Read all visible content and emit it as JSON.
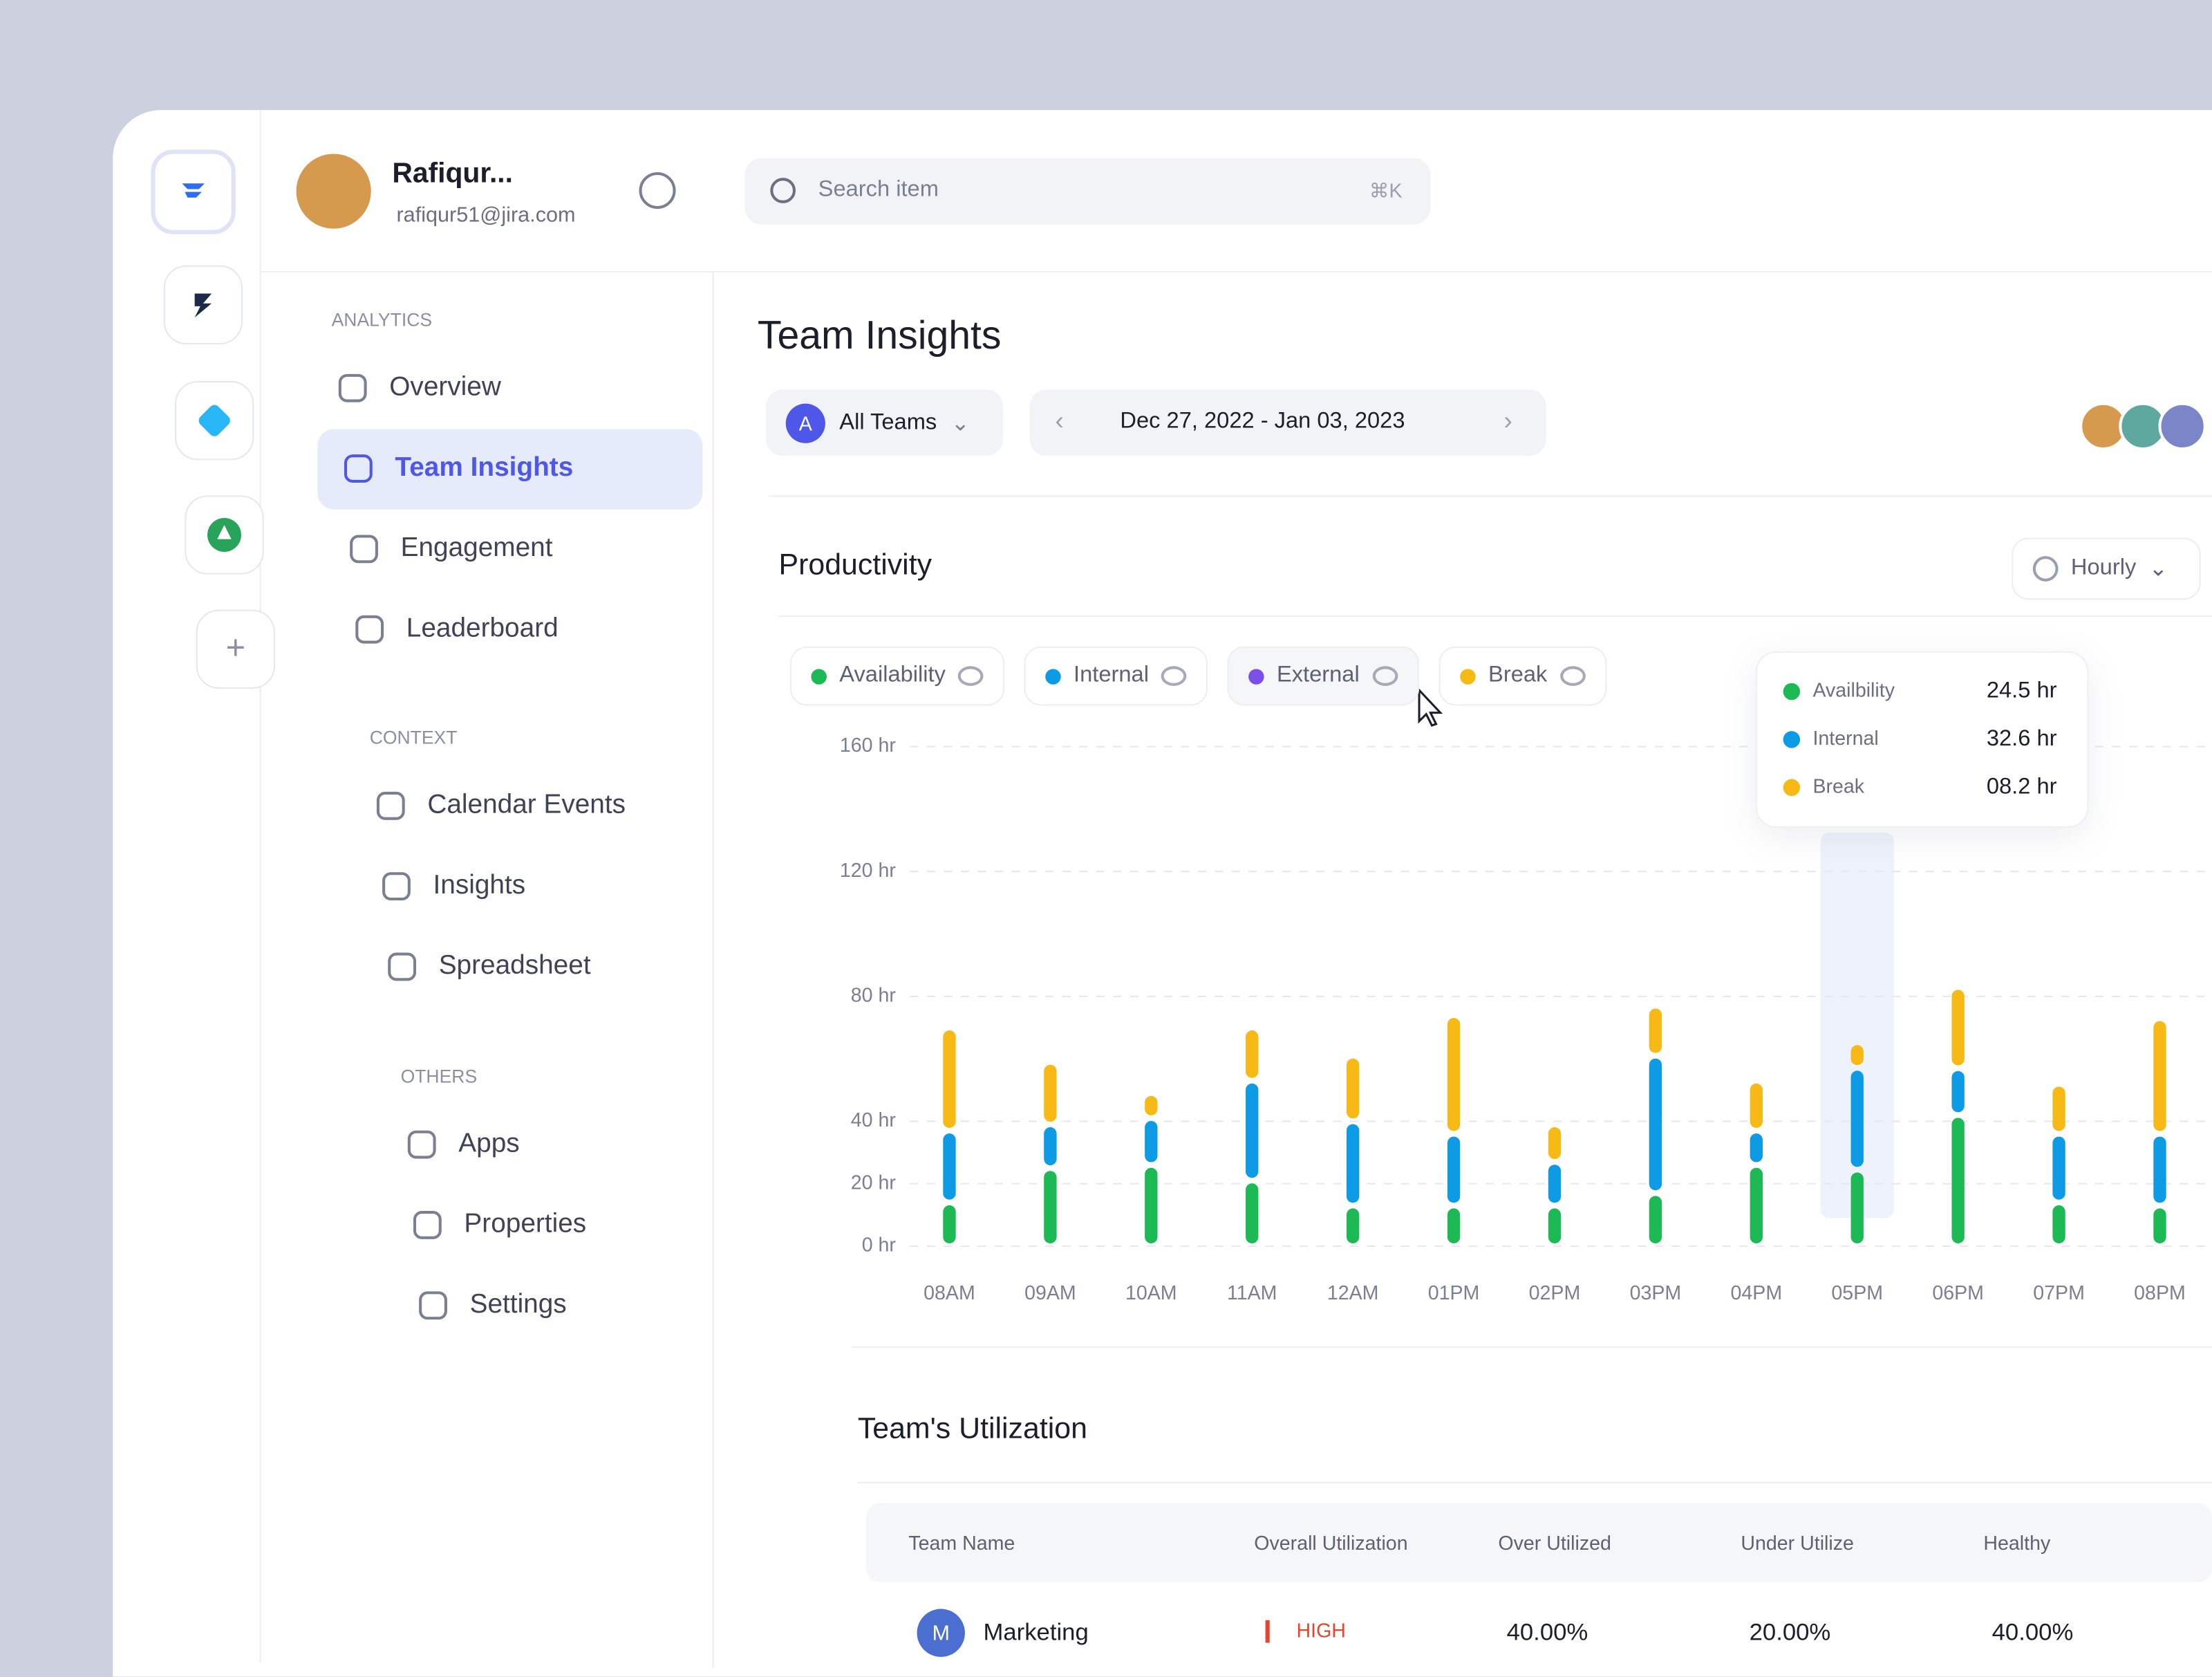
{
  "user": {
    "name": "Rafiqur...",
    "email": "rafiqur51@jira.com"
  },
  "search": {
    "placeholder": "Search item",
    "shortcut": "⌘K"
  },
  "sidebar": {
    "sections": [
      {
        "title": "ANALYTICS",
        "items": [
          "Overview",
          "Team Insights",
          "Engagement",
          "Leaderboard"
        ]
      },
      {
        "title": "CONTEXT",
        "items": [
          "Calendar Events",
          "Insights",
          "Spreadsheet"
        ]
      },
      {
        "title": "OTHERS",
        "items": [
          "Apps",
          "Properties",
          "Settings"
        ]
      }
    ]
  },
  "page": {
    "title": "Team Insights",
    "team_filter": {
      "initial": "A",
      "label": "All Teams"
    },
    "date_range": "Dec 27, 2022 - Jan 03, 2023"
  },
  "chart_data": {
    "type": "bar",
    "stacked": true,
    "title": "Productivity",
    "interval": "Hourly",
    "categories": [
      "08AM",
      "09AM",
      "10AM",
      "11AM",
      "12AM",
      "01PM",
      "02PM",
      "03PM",
      "04PM",
      "05PM",
      "06PM",
      "07PM",
      "08PM"
    ],
    "series": [
      {
        "name": "Availability",
        "color": "#1db954",
        "values": [
          14,
          25,
          26,
          21,
          13,
          13,
          13,
          17,
          26,
          24.5,
          42,
          14,
          13
        ]
      },
      {
        "name": "Internal",
        "color": "#0e9be6",
        "values": [
          23,
          14,
          15,
          32,
          27,
          23,
          14,
          44,
          11,
          32.6,
          15,
          22,
          23
        ]
      },
      {
        "name": "Break",
        "color": "#f7b916",
        "values": [
          33,
          20,
          8,
          17,
          21,
          38,
          12,
          16,
          16,
          8.2,
          26,
          16,
          37
        ]
      }
    ],
    "hidden_series": [
      {
        "name": "External",
        "color": "#7b4fe8"
      }
    ],
    "ylim": [
      0,
      160
    ],
    "yticks": [
      {
        "value": 0,
        "label": "0 hr"
      },
      {
        "value": 20,
        "label": "20 hr"
      },
      {
        "value": 40,
        "label": "40 hr"
      },
      {
        "value": 80,
        "label": "80 hr"
      },
      {
        "value": 120,
        "label": "120 hr"
      },
      {
        "value": 160,
        "label": "160 hr"
      }
    ],
    "grid": true,
    "tooltip": {
      "category_index": 9,
      "rows": [
        {
          "label": "Availbility",
          "value_label": "24.5 hr",
          "color": "#1db954"
        },
        {
          "label": "Internal",
          "value_label": "32.6 hr",
          "color": "#0e9be6"
        },
        {
          "label": "Break",
          "value_label": "08.2 hr",
          "color": "#f7b916"
        }
      ]
    }
  },
  "table": {
    "title": "Team's Utilization",
    "columns": [
      "Team Name",
      "Overall Utilization",
      "Over Utilized",
      "Under Utilize",
      "Healthy"
    ],
    "rows": [
      {
        "initial": "M",
        "cells": [
          "Marketing",
          "HIGH",
          "40.00%",
          "20.00%",
          "40.00%"
        ]
      }
    ]
  }
}
